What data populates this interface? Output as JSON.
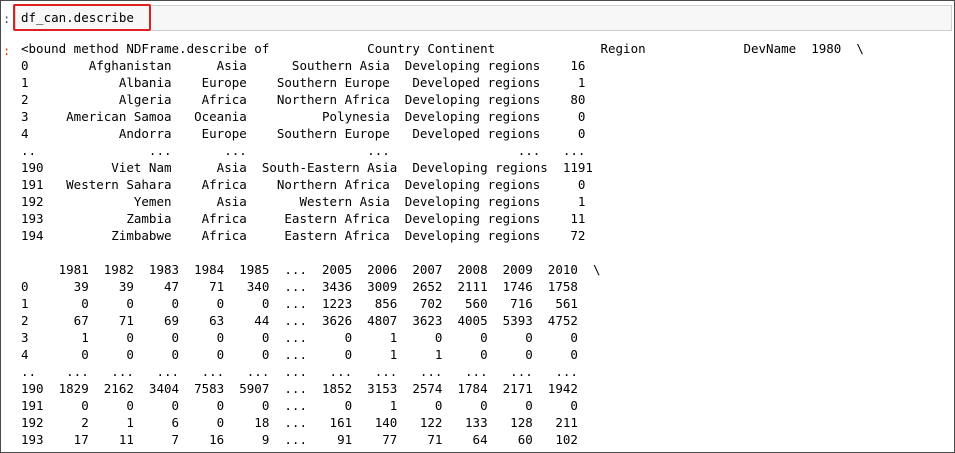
{
  "cell": {
    "input_prompt": ":",
    "code": "df_can.describe",
    "output_prompt": ":"
  },
  "output_lines": [
    "<bound method NDFrame.describe of             Country Continent              Region             DevName  1980  \\",
    "0        Afghanistan      Asia      Southern Asia  Developing regions    16",
    "1            Albania    Europe    Southern Europe   Developed regions     1",
    "2            Algeria    Africa    Northern Africa  Developing regions    80",
    "3     American Samoa   Oceania          Polynesia  Developing regions     0",
    "4            Andorra    Europe    Southern Europe   Developed regions     0",
    "..               ...       ...                ...                 ...   ...",
    "190         Viet Nam      Asia  South-Eastern Asia  Developing regions  1191",
    "191   Western Sahara    Africa    Northern Africa  Developing regions     0",
    "192            Yemen      Asia       Western Asia  Developing regions     1",
    "193           Zambia    Africa     Eastern Africa  Developing regions    11",
    "194         Zimbabwe    Africa     Eastern Africa  Developing regions    72",
    "",
    "     1981  1982  1983  1984  1985  ...  2005  2006  2007  2008  2009  2010  \\",
    "0      39    39    47    71   340  ...  3436  3009  2652  2111  1746  1758",
    "1       0     0     0     0     0  ...  1223   856   702   560   716   561",
    "2      67    71    69    63    44  ...  3626  4807  3623  4005  5393  4752",
    "3       1     0     0     0     0  ...     0     1     0     0     0     0",
    "4       0     0     0     0     0  ...     0     1     1     0     0     0",
    "..    ...   ...   ...   ...   ...  ...   ...   ...   ...   ...   ...   ...",
    "190  1829  2162  3404  7583  5907  ...  1852  3153  2574  1784  2171  1942",
    "191     0     0     0     0     0  ...     0     1     0     0     0     0",
    "192     2     1     6     0    18  ...   161   140   122   133   128   211",
    "193    17    11     7    16     9  ...    91    77    71    64    60   102"
  ]
}
